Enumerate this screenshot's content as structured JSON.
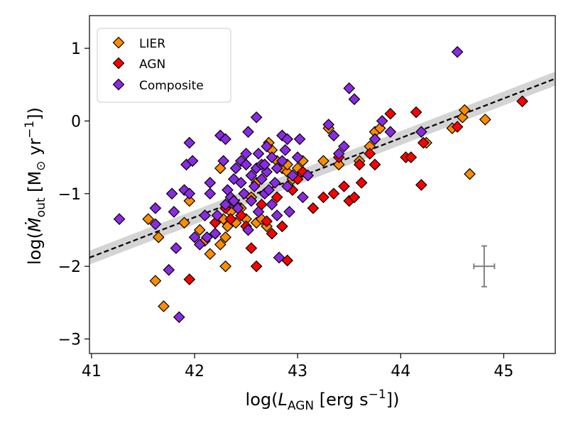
{
  "chart_data": {
    "type": "scatter",
    "title": "",
    "xlabel": {
      "prefix": "log(",
      "main": "L",
      "sub": "AGN",
      "unit": " [erg s",
      "sup": "−1",
      "suffix": "])"
    },
    "ylabel": {
      "prefix": "log(",
      "main": "Ṁ",
      "sub": "out",
      "unit": " [M",
      "sym": "⊙",
      "unit2": " yr",
      "sup": "−1",
      "suffix": "])"
    },
    "xlim": [
      40.98,
      45.5
    ],
    "ylim": [
      -3.2,
      1.45
    ],
    "xticks": [
      41,
      42,
      43,
      44,
      45
    ],
    "xtick_labels": [
      "41",
      "42",
      "43",
      "44",
      "45"
    ],
    "yticks": [
      1,
      0,
      -1,
      -2,
      -3
    ],
    "ytick_labels": [
      "1",
      "0",
      "−1",
      "−2",
      "−3"
    ],
    "legend_position": "top-left",
    "fit": {
      "slope": 0.545,
      "intercept_at_41": -1.87,
      "band_halfwidth": 0.06,
      "line_color": "#000000",
      "band_color": "#cccccc"
    },
    "error_bar": {
      "x": 44.81,
      "y": -2.0,
      "xerr": 0.1,
      "yerr": 0.28,
      "color": "#808080"
    },
    "colors": {
      "LIER": "#ff8c00",
      "AGN": "#ff0000",
      "Composite": "#8a2be2",
      "edge": "#000000"
    },
    "series": [
      {
        "name": "LIER",
        "points": [
          [
            41.55,
            -1.35
          ],
          [
            41.62,
            -2.2
          ],
          [
            41.65,
            -1.6
          ],
          [
            41.7,
            -2.55
          ],
          [
            41.9,
            -1.4
          ],
          [
            41.95,
            -1.1
          ],
          [
            42.05,
            -1.5
          ],
          [
            42.1,
            -1.65
          ],
          [
            42.15,
            -1.83
          ],
          [
            42.2,
            -1.55
          ],
          [
            42.25,
            -1.7
          ],
          [
            42.28,
            -1.35
          ],
          [
            42.3,
            -1.6
          ],
          [
            42.32,
            -1.45
          ],
          [
            42.35,
            -1.25
          ],
          [
            42.4,
            -1.4
          ],
          [
            42.45,
            -1.2
          ],
          [
            42.5,
            -1.35
          ],
          [
            42.55,
            -1.05
          ],
          [
            42.6,
            -1.4
          ],
          [
            42.65,
            -1.35
          ],
          [
            42.7,
            -1.45
          ],
          [
            42.72,
            -0.3
          ],
          [
            42.75,
            -0.4
          ],
          [
            42.8,
            -0.55
          ],
          [
            42.85,
            -0.65
          ],
          [
            42.9,
            -0.7
          ],
          [
            42.95,
            -0.8
          ],
          [
            43.0,
            -0.65
          ],
          [
            43.05,
            -0.55
          ],
          [
            43.25,
            -0.55
          ],
          [
            43.3,
            -0.1
          ],
          [
            43.4,
            -0.6
          ],
          [
            43.6,
            -0.55
          ],
          [
            43.7,
            -0.35
          ],
          [
            43.75,
            -0.15
          ],
          [
            43.8,
            -0.1
          ],
          [
            44.25,
            -0.3
          ],
          [
            44.5,
            -0.1
          ],
          [
            44.6,
            0.05
          ],
          [
            44.62,
            0.15
          ],
          [
            44.67,
            -0.73
          ],
          [
            44.82,
            0.02
          ],
          [
            42.3,
            -2.0
          ],
          [
            42.25,
            -0.65
          ],
          [
            42.4,
            -1.15
          ],
          [
            42.6,
            -0.85
          ],
          [
            42.9,
            -0.6
          ]
        ]
      },
      {
        "name": "AGN",
        "points": [
          [
            41.95,
            -2.18
          ],
          [
            42.2,
            -1.4
          ],
          [
            42.3,
            -1.2
          ],
          [
            42.35,
            -1.35
          ],
          [
            42.5,
            -1.45
          ],
          [
            42.55,
            -1.75
          ],
          [
            42.6,
            -2.0
          ],
          [
            42.7,
            -1.38
          ],
          [
            42.75,
            -1.55
          ],
          [
            42.8,
            -1.05
          ],
          [
            42.85,
            -1.45
          ],
          [
            42.9,
            -1.92
          ],
          [
            42.95,
            -0.95
          ],
          [
            43.0,
            -0.8
          ],
          [
            43.05,
            -0.7
          ],
          [
            43.15,
            -1.2
          ],
          [
            43.25,
            -1.05
          ],
          [
            43.35,
            -1.0
          ],
          [
            43.4,
            -0.5
          ],
          [
            43.45,
            -0.9
          ],
          [
            43.5,
            -1.1
          ],
          [
            43.55,
            -1.05
          ],
          [
            43.6,
            -0.6
          ],
          [
            43.62,
            -0.85
          ],
          [
            43.7,
            -0.45
          ],
          [
            43.75,
            -0.6
          ],
          [
            43.9,
            0.1
          ],
          [
            44.05,
            -0.5
          ],
          [
            44.1,
            -0.5
          ],
          [
            44.15,
            0.12
          ],
          [
            44.2,
            -0.88
          ],
          [
            44.22,
            -0.3
          ],
          [
            44.55,
            -0.08
          ],
          [
            45.18,
            0.27
          ],
          [
            42.45,
            -1.3
          ],
          [
            42.65,
            -1.15
          ]
        ]
      },
      {
        "name": "Composite",
        "points": [
          [
            41.27,
            -1.35
          ],
          [
            41.62,
            -1.2
          ],
          [
            41.62,
            -1.42
          ],
          [
            41.75,
            -2.05
          ],
          [
            41.78,
            -1.0
          ],
          [
            41.8,
            -1.25
          ],
          [
            41.82,
            -1.75
          ],
          [
            41.85,
            -2.7
          ],
          [
            41.9,
            -0.95
          ],
          [
            41.92,
            -0.6
          ],
          [
            41.95,
            -1.0
          ],
          [
            41.95,
            -0.3
          ],
          [
            41.98,
            -0.55
          ],
          [
            42.0,
            -1.6
          ],
          [
            42.05,
            -1.7
          ],
          [
            42.1,
            -1.3
          ],
          [
            42.12,
            -1.6
          ],
          [
            42.15,
            -1.0
          ],
          [
            42.2,
            -1.55
          ],
          [
            42.22,
            -1.3
          ],
          [
            42.25,
            -0.2
          ],
          [
            42.28,
            -0.55
          ],
          [
            42.3,
            -1.15
          ],
          [
            42.3,
            -0.25
          ],
          [
            42.32,
            -0.95
          ],
          [
            42.35,
            -1.05
          ],
          [
            42.38,
            -0.8
          ],
          [
            42.4,
            -0.65
          ],
          [
            42.42,
            -1.2
          ],
          [
            42.45,
            -0.85
          ],
          [
            42.45,
            -0.55
          ],
          [
            42.48,
            -1.0
          ],
          [
            42.5,
            -0.6
          ],
          [
            42.5,
            -0.45
          ],
          [
            42.52,
            -0.15
          ],
          [
            42.55,
            -1.1
          ],
          [
            42.55,
            -0.75
          ],
          [
            42.58,
            -0.9
          ],
          [
            42.6,
            -0.65
          ],
          [
            42.6,
            0.05
          ],
          [
            42.62,
            -1.25
          ],
          [
            42.62,
            -0.45
          ],
          [
            42.65,
            -0.8
          ],
          [
            42.65,
            -0.6
          ],
          [
            42.68,
            -1.0
          ],
          [
            42.7,
            -0.7
          ],
          [
            42.7,
            -0.35
          ],
          [
            42.72,
            -0.95
          ],
          [
            42.75,
            -1.15
          ],
          [
            42.75,
            -0.5
          ],
          [
            42.78,
            -0.85
          ],
          [
            42.8,
            -0.65
          ],
          [
            42.8,
            -1.3
          ],
          [
            42.82,
            -1.88
          ],
          [
            42.85,
            -0.55
          ],
          [
            42.85,
            -0.2
          ],
          [
            42.88,
            -0.4
          ],
          [
            42.9,
            -0.9
          ],
          [
            42.9,
            -0.25
          ],
          [
            42.92,
            -1.25
          ],
          [
            42.95,
            -0.75
          ],
          [
            43.0,
            -0.5
          ],
          [
            43.02,
            -0.25
          ],
          [
            43.05,
            -1.05
          ],
          [
            43.1,
            -0.75
          ],
          [
            43.3,
            -0.05
          ],
          [
            43.35,
            -0.2
          ],
          [
            43.4,
            -0.45
          ],
          [
            43.45,
            -0.35
          ],
          [
            43.5,
            0.45
          ],
          [
            43.55,
            0.3
          ],
          [
            43.75,
            -0.25
          ],
          [
            43.82,
            0.0
          ],
          [
            43.9,
            -0.15
          ],
          [
            44.2,
            -0.15
          ],
          [
            44.55,
            0.95
          ],
          [
            42.15,
            -0.85
          ],
          [
            42.38,
            -1.1
          ],
          [
            42.52,
            -1.5
          ],
          [
            42.68,
            -0.6
          ]
        ]
      }
    ]
  }
}
